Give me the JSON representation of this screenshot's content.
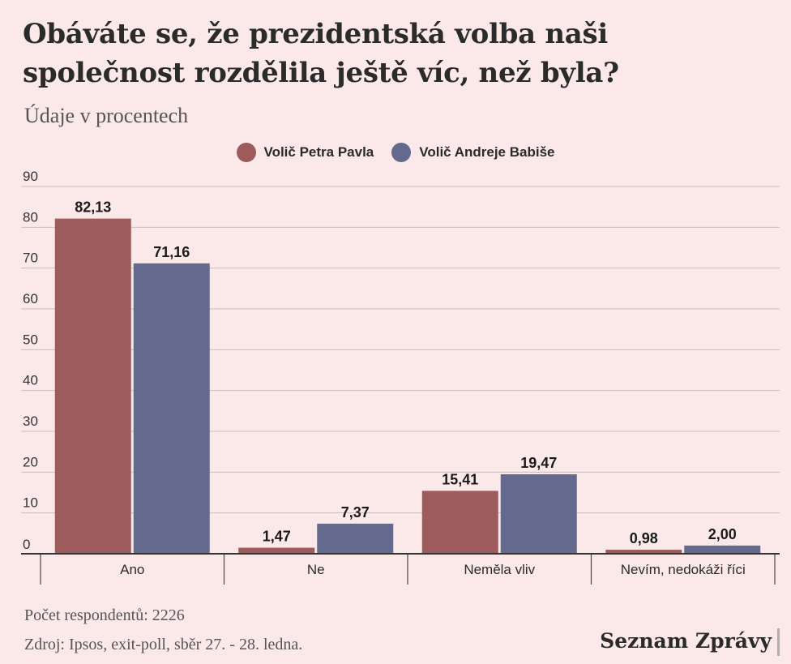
{
  "title": "Obáváte se, že prezidentská volba naši společnost rozdělila ještě víc, než byla?",
  "subtitle": "Údaje v procentech",
  "legend": [
    {
      "label": "Volič Petra Pavla",
      "color": "#9e5b5b"
    },
    {
      "label": "Volič Andreje Babiše",
      "color": "#636a8e"
    }
  ],
  "chart_data": {
    "type": "bar",
    "categories": [
      "Ano",
      "Ne",
      "Neměla vliv",
      "Nevím, nedokáži říci"
    ],
    "series": [
      {
        "name": "Volič Petra Pavla",
        "values": [
          82.13,
          1.47,
          15.41,
          0.98
        ],
        "labels": [
          "82,13",
          "1,47",
          "15,41",
          "0,98"
        ],
        "color": "#9e5b5b"
      },
      {
        "name": "Volič Andreje Babiše",
        "values": [
          71.16,
          7.37,
          19.47,
          2.0
        ],
        "labels": [
          "71,16",
          "7,37",
          "19,47",
          "2,00"
        ],
        "color": "#636a8e"
      }
    ],
    "yticks": [
      0,
      10,
      20,
      30,
      40,
      50,
      60,
      70,
      80,
      90
    ],
    "ylim": [
      0,
      90
    ],
    "grid": true,
    "legend_position": "top-center"
  },
  "footnotes": {
    "respondents": "Počet respondentů: 2226",
    "source": "Zdroj: Ipsos, exit-poll, sběr 27. - 28. ledna."
  },
  "brand": "Seznam Zprávy"
}
